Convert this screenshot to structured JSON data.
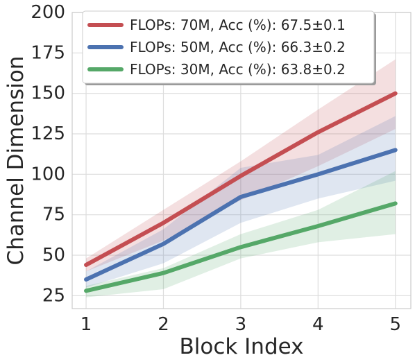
{
  "chart_data": {
    "type": "line",
    "title": "",
    "xlabel": "Block Index",
    "ylabel": "Channel Dimension",
    "x": [
      1,
      2,
      3,
      4,
      5
    ],
    "xticks": [
      "1",
      "2",
      "3",
      "4",
      "5"
    ],
    "yticks": [
      "25",
      "50",
      "75",
      "100",
      "125",
      "150",
      "175",
      "200"
    ],
    "xlim": [
      0.82,
      5.2
    ],
    "ylim": [
      17,
      200
    ],
    "grid": true,
    "legend_position": "top",
    "series": [
      {
        "name": "FLOPs: 70M, Acc (%): 67.5±0.1",
        "color": "#c44e52",
        "values": [
          44,
          70,
          99,
          126,
          150
        ],
        "lower": [
          40,
          59,
          84,
          105,
          128
        ],
        "upper": [
          48,
          78,
          108,
          140,
          171
        ]
      },
      {
        "name": "FLOPs: 50M, Acc (%): 66.3±0.2",
        "color": "#4c72b0",
        "values": [
          35,
          57,
          86,
          100,
          115
        ],
        "lower": [
          30,
          45,
          70,
          85,
          96
        ],
        "upper": [
          40,
          66,
          104,
          112,
          136
        ]
      },
      {
        "name": "FLOPs: 30M, Acc (%): 63.8±0.2",
        "color": "#55a868",
        "values": [
          28,
          39,
          55,
          68,
          82
        ],
        "lower": [
          24,
          29,
          48,
          58,
          63
        ],
        "upper": [
          31,
          42,
          63,
          78,
          102
        ]
      }
    ]
  }
}
